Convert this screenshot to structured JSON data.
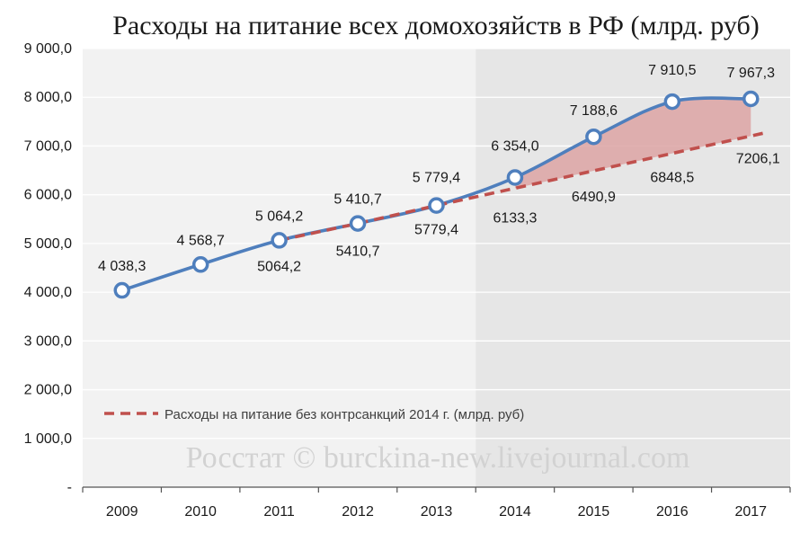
{
  "chart_data": {
    "type": "line",
    "title": "Расходы на питание всех домохозяйств в РФ (млрд. руб)",
    "categories": [
      "2009",
      "2010",
      "2011",
      "2012",
      "2013",
      "2014",
      "2015",
      "2016",
      "2017"
    ],
    "ylim": [
      0,
      9000
    ],
    "y_ticks": [
      0,
      1000,
      2000,
      3000,
      4000,
      5000,
      6000,
      7000,
      8000,
      9000
    ],
    "y_tick_labels": [
      "-",
      "1 000,0",
      "2 000,0",
      "3 000,0",
      "4 000,0",
      "5 000,0",
      "6 000,0",
      "7 000,0",
      "8 000,0",
      "9 000,0"
    ],
    "grid": true,
    "shaded_region_start": "2014",
    "series": [
      {
        "values": [
          4038.3,
          4568.7,
          5064.2,
          5410.7,
          5779.4,
          6354.0,
          7188.6,
          7910.5,
          7967.3
        ],
        "labels": [
          "4 038,3",
          "4 568,7",
          "5 064,2",
          "5 410,7",
          "5 779,4",
          "6 354,0",
          "7 188,6",
          "7 910,5",
          "7 967,3"
        ],
        "color": "#4f7fbd",
        "style": "solid",
        "markers": true
      },
      {
        "name": "Расходы на питание без контрсанкций 2014 г. (млрд. руб)",
        "values": [
          null,
          null,
          5064.2,
          5410.7,
          5779.4,
          6133.3,
          6490.9,
          6848.5,
          7206.1
        ],
        "labels": [
          "",
          "",
          "5064,2",
          "5410,7",
          "5779,4",
          "6133,3",
          "6490,9",
          "6848,5",
          "7206,1"
        ],
        "color": "#c0504d",
        "style": "dashed"
      }
    ],
    "fill_between": {
      "from": "2014",
      "to": "2017",
      "color": "#dca3a3"
    },
    "legend_position": "bottom",
    "watermark": "Росстат © burckina-new.livejournal.com"
  }
}
